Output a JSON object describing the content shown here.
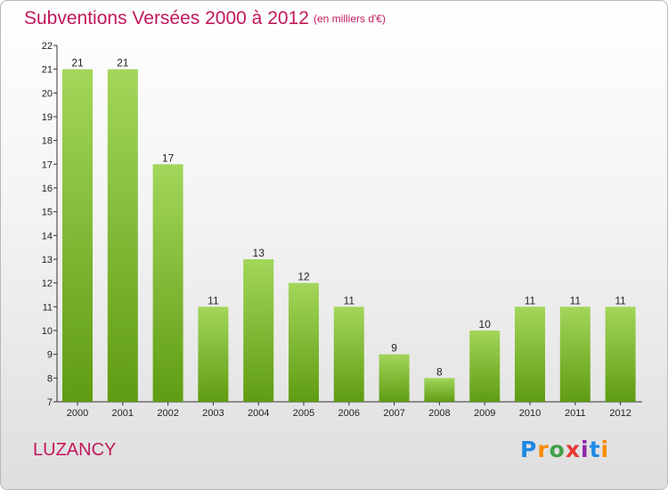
{
  "chart_data": {
    "type": "bar",
    "title": "Subventions Versées 2000 à 2012",
    "subtitle": "(en milliers d'€)",
    "categories": [
      "2000",
      "2001",
      "2002",
      "2003",
      "2004",
      "2005",
      "2006",
      "2007",
      "2008",
      "2009",
      "2010",
      "2011",
      "2012"
    ],
    "values": [
      21,
      21,
      17,
      11,
      13,
      12,
      11,
      9,
      8,
      10,
      11,
      11,
      11
    ],
    "ylim": [
      7,
      22
    ],
    "yticks": [
      7,
      8,
      9,
      10,
      11,
      12,
      13,
      14,
      15,
      16,
      17,
      18,
      19,
      20,
      21,
      22
    ],
    "grid": false,
    "bar_color_top": "#a3d65a",
    "bar_color_bottom": "#5f9c12"
  },
  "commune": "LUZANCY",
  "logo": {
    "letters": [
      "P",
      "r",
      "o",
      "x",
      "i",
      "t",
      "i"
    ],
    "colors": [
      "#1e88e5",
      "#fb8c00",
      "#43a047",
      "#e53935",
      "#8e24aa",
      "#1e88e5",
      "#fb8c00"
    ]
  }
}
